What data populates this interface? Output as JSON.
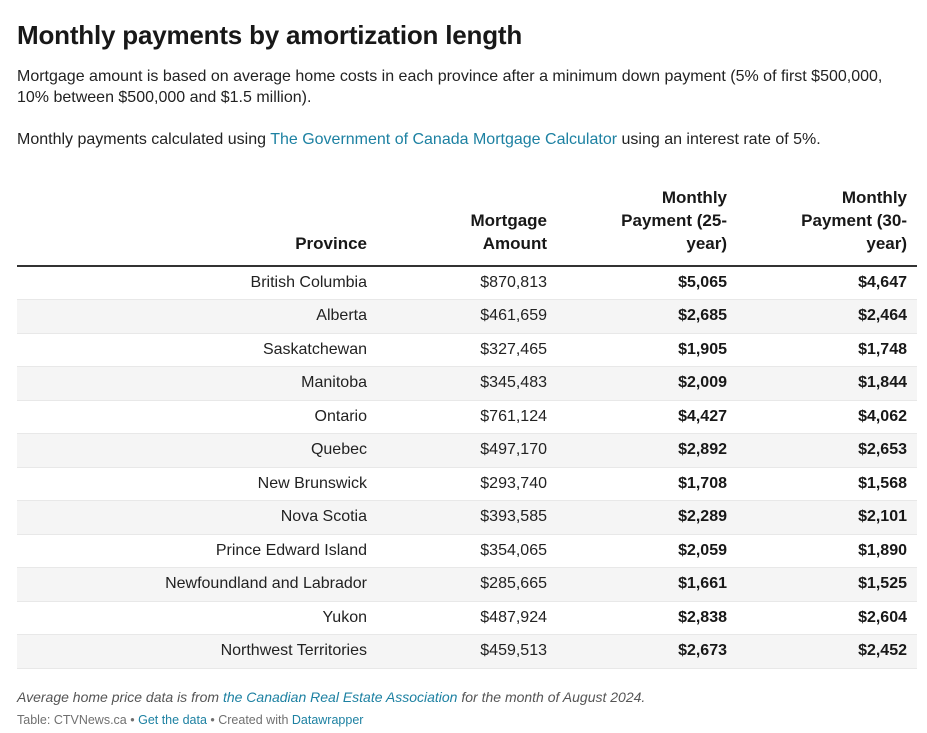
{
  "header": {
    "title": "Monthly payments by amortization length",
    "description": "Mortgage amount is based on average home costs in each province after a minimum down payment (5% of first $500,000, 10% between $500,000 and $1.5 million).",
    "calc_prefix": "Monthly payments calculated using ",
    "calc_link": "The Government of Canada Mortgage Calculator",
    "calc_suffix": " using an interest rate of 5%."
  },
  "chart_data": {
    "type": "table",
    "columns": [
      "Province",
      "Mortgage Amount",
      "Monthly Payment (25-year)",
      "Monthly Payment (30-year)"
    ],
    "column_lines": [
      [
        "Province"
      ],
      [
        "Mortgage",
        "Amount"
      ],
      [
        "Monthly",
        "Payment (25-",
        "year)"
      ],
      [
        "Monthly",
        "Payment (30-",
        "year)"
      ]
    ],
    "rows": [
      [
        "British Columbia",
        "$870,813",
        "$5,065",
        "$4,647"
      ],
      [
        "Alberta",
        "$461,659",
        "$2,685",
        "$2,464"
      ],
      [
        "Saskatchewan",
        "$327,465",
        "$1,905",
        "$1,748"
      ],
      [
        "Manitoba",
        "$345,483",
        "$2,009",
        "$1,844"
      ],
      [
        "Ontario",
        "$761,124",
        "$4,427",
        "$4,062"
      ],
      [
        "Quebec",
        "$497,170",
        "$2,892",
        "$2,653"
      ],
      [
        "New Brunswick",
        "$293,740",
        "$1,708",
        "$1,568"
      ],
      [
        "Nova Scotia",
        "$393,585",
        "$2,289",
        "$2,101"
      ],
      [
        "Prince Edward Island",
        "$354,065",
        "$2,059",
        "$1,890"
      ],
      [
        "Newfoundland and Labrador",
        "$285,665",
        "$1,661",
        "$1,525"
      ],
      [
        "Yukon",
        "$487,924",
        "$2,838",
        "$2,604"
      ],
      [
        "Northwest Territories",
        "$459,513",
        "$2,673",
        "$2,452"
      ]
    ]
  },
  "notes": {
    "prefix": "Average home price data is from ",
    "link": "the Canadian Real Estate Association",
    "suffix": " for the month of August 2024."
  },
  "footer": {
    "source": "Table: CTVNews.ca",
    "sep1": " • ",
    "get_data": "Get the data",
    "sep2": " • Created with ",
    "datawrapper": "Datawrapper"
  },
  "colors": {
    "link": "#1d81a2",
    "row_alt": "#f5f5f5"
  }
}
